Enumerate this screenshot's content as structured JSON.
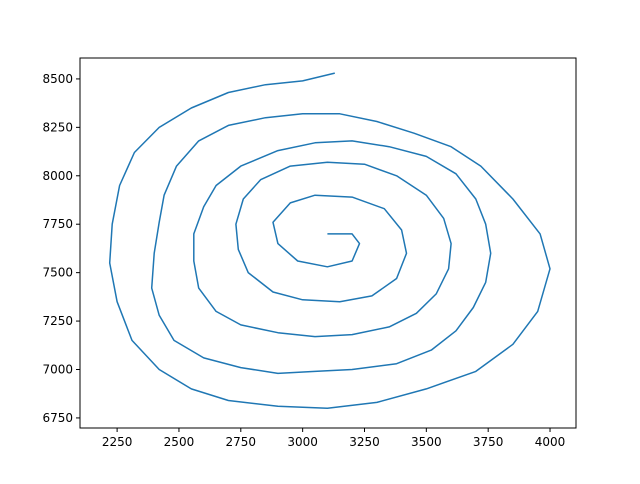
{
  "chart_data": {
    "type": "line",
    "color": "#1f77b4",
    "x": [
      3100,
      3200,
      3230,
      3200,
      3100,
      2980,
      2900,
      2880,
      2950,
      3050,
      3200,
      3330,
      3400,
      3420,
      3380,
      3280,
      3150,
      3000,
      2880,
      2780,
      2740,
      2730,
      2760,
      2830,
      2950,
      3100,
      3250,
      3380,
      3500,
      3570,
      3600,
      3590,
      3540,
      3460,
      3350,
      3200,
      3050,
      2900,
      2750,
      2650,
      2580,
      2560,
      2560,
      2600,
      2650,
      2750,
      2900,
      3050,
      3200,
      3350,
      3500,
      3620,
      3700,
      3740,
      3760,
      3740,
      3690,
      3620,
      3520,
      3380,
      3200,
      3050,
      2900,
      2750,
      2600,
      2480,
      2420,
      2390,
      2400,
      2420,
      2440,
      2490,
      2580,
      2700,
      2850,
      3000,
      3150,
      3300,
      3450,
      3600,
      3720,
      3850,
      3960,
      4000,
      3950,
      3850,
      3700,
      3500,
      3300,
      3100,
      2900,
      2700,
      2550,
      2420,
      2310,
      2250,
      2220,
      2230,
      2260,
      2320,
      2420,
      2550,
      2700,
      2850,
      3000,
      3130
    ],
    "y": [
      7700,
      7700,
      7650,
      7560,
      7530,
      7560,
      7650,
      7760,
      7860,
      7900,
      7890,
      7830,
      7720,
      7600,
      7470,
      7380,
      7350,
      7360,
      7400,
      7500,
      7620,
      7750,
      7880,
      7980,
      8050,
      8070,
      8060,
      8000,
      7900,
      7780,
      7650,
      7520,
      7390,
      7290,
      7220,
      7180,
      7170,
      7190,
      7230,
      7300,
      7420,
      7560,
      7700,
      7840,
      7950,
      8050,
      8130,
      8170,
      8180,
      8150,
      8100,
      8010,
      7880,
      7750,
      7600,
      7450,
      7320,
      7200,
      7100,
      7030,
      7000,
      6990,
      6980,
      7010,
      7060,
      7150,
      7280,
      7420,
      7600,
      7760,
      7900,
      8050,
      8180,
      8260,
      8300,
      8320,
      8320,
      8280,
      8220,
      8150,
      8050,
      7880,
      7700,
      7520,
      7300,
      7130,
      6990,
      6900,
      6830,
      6800,
      6810,
      6840,
      6900,
      7000,
      7150,
      7350,
      7550,
      7750,
      7950,
      8120,
      8250,
      8350,
      8430,
      8470,
      8490,
      8530
    ],
    "xlim": [
      2100,
      4105
    ],
    "ylim": [
      6698,
      8608
    ],
    "xticks": [
      2250,
      2500,
      2750,
      3000,
      3250,
      3500,
      3750,
      4000
    ],
    "yticks": [
      6750,
      7000,
      7250,
      7500,
      7750,
      8000,
      8250,
      8500
    ]
  }
}
